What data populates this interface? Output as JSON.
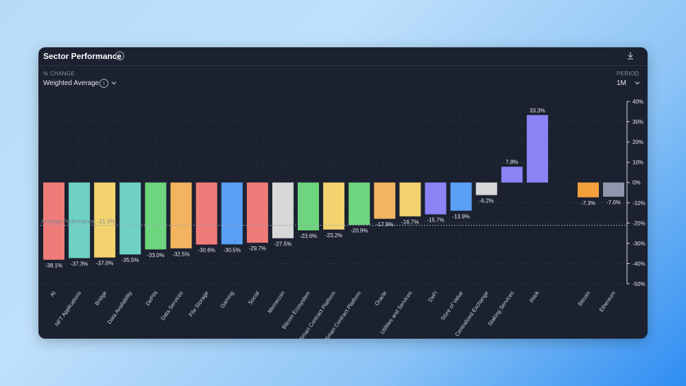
{
  "header": {
    "title": "Sector Performance"
  },
  "controls": {
    "change_label": "% CHANGE",
    "change_value": "Weighted Average",
    "period_label": "PERIOD",
    "period_value": "1M"
  },
  "chart_data": {
    "type": "bar",
    "categories": [
      "AI",
      "NFT Applications",
      "Bridge",
      "Data Availability",
      "DePIN",
      "Data Services",
      "File Storage",
      "Gaming",
      "Social",
      "Memecoin",
      "Bitcoin Ecosystem",
      "Smart Contract Platform",
      "Smart Contract Platform",
      "Oracle",
      "Utilities and Services",
      "DeFi",
      "Store of Value",
      "Centralized Exchange",
      "Staking Services",
      "RWA",
      "Bitcoin",
      "Ethereum"
    ],
    "values": [
      -38.1,
      -37.3,
      -37.0,
      -35.5,
      -33.0,
      -32.5,
      -30.6,
      -30.5,
      -29.7,
      -27.5,
      -23.6,
      -23.2,
      -20.9,
      -17.9,
      -16.7,
      -15.7,
      -13.9,
      -6.2,
      7.8,
      33.3,
      -7.3,
      -7.0
    ],
    "value_labels": [
      "-38.1%",
      "-37.3%",
      "-37.0%",
      "-35.5%",
      "-33.0%",
      "-32.5%",
      "-30.6%",
      "-30.5%",
      "-29.7%",
      "-27.5%",
      "-23.6%",
      "-23.2%",
      "-20.9%",
      "-17.9%",
      "-16.7%",
      "-15.7%",
      "-13.9%",
      "-6.2%",
      "7.8%",
      "33.3%",
      "-7.3%",
      "-7.0%"
    ],
    "colors": [
      "#ef7b78",
      "#6fd1c4",
      "#f2d36e",
      "#6fd1c4",
      "#6fd47e",
      "#f3b45f",
      "#ef7b78",
      "#5aa0f7",
      "#ef7b78",
      "#d8d8d8",
      "#6fd47e",
      "#f2d36e",
      "#6fd47e",
      "#f3b45f",
      "#f2d36e",
      "#8b84f7",
      "#5aa0f7",
      "#d8d8d8",
      "#8b84f7",
      "#8b84f7",
      "#f2a03c",
      "#8e97ac"
    ],
    "y_ticks": [
      "40%",
      "30%",
      "20%",
      "10%",
      "0%",
      "-10%",
      "-20%",
      "-30%",
      "-40%",
      "-50%"
    ],
    "ylim": [
      -50,
      40
    ],
    "reference_line": {
      "label": "Average Performance: -21.1%",
      "value": -21.1
    },
    "grid": true
  }
}
